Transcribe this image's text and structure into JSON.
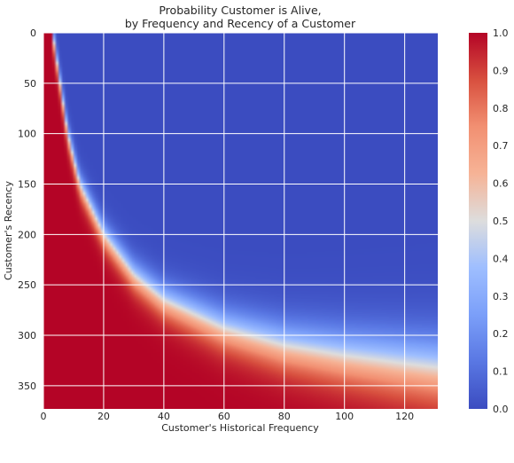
{
  "chart_data": {
    "type": "heatmap",
    "title_lines": [
      "Probability Customer is Alive,",
      "by Frequency and Recency of a Customer"
    ],
    "xlabel": "Customer's Historical Frequency",
    "ylabel": "Customer's Recency",
    "xlim": [
      0,
      131
    ],
    "ylim": [
      373,
      0
    ],
    "x_ticks": [
      0,
      20,
      40,
      60,
      80,
      100,
      120
    ],
    "y_ticks": [
      0,
      50,
      100,
      150,
      200,
      250,
      300,
      350
    ],
    "colormap": "coolwarm",
    "colorbar": {
      "range": [
        0.0,
        1.0
      ],
      "ticks": [
        "0.0",
        "0.1",
        "0.2",
        "0.3",
        "0.4",
        "0.5",
        "0.6",
        "0.7",
        "0.8",
        "0.9",
        "1.0"
      ]
    },
    "grid": true,
    "boundary_50pct": [
      {
        "frequency": 3,
        "recency": 0
      },
      {
        "frequency": 5,
        "recency": 40
      },
      {
        "frequency": 8,
        "recency": 100
      },
      {
        "frequency": 12,
        "recency": 150
      },
      {
        "frequency": 20,
        "recency": 200
      },
      {
        "frequency": 30,
        "recency": 240
      },
      {
        "frequency": 40,
        "recency": 265
      },
      {
        "frequency": 60,
        "recency": 293
      },
      {
        "frequency": 80,
        "recency": 310
      },
      {
        "frequency": 100,
        "recency": 320
      },
      {
        "frequency": 120,
        "recency": 328
      },
      {
        "frequency": 131,
        "recency": 332
      }
    ]
  },
  "colors": {
    "cmap_low": "#3b4cc0",
    "cmap_mid": "#dddddd",
    "cmap_high": "#b40426",
    "grid": "#ffffff",
    "text": "#262626"
  }
}
